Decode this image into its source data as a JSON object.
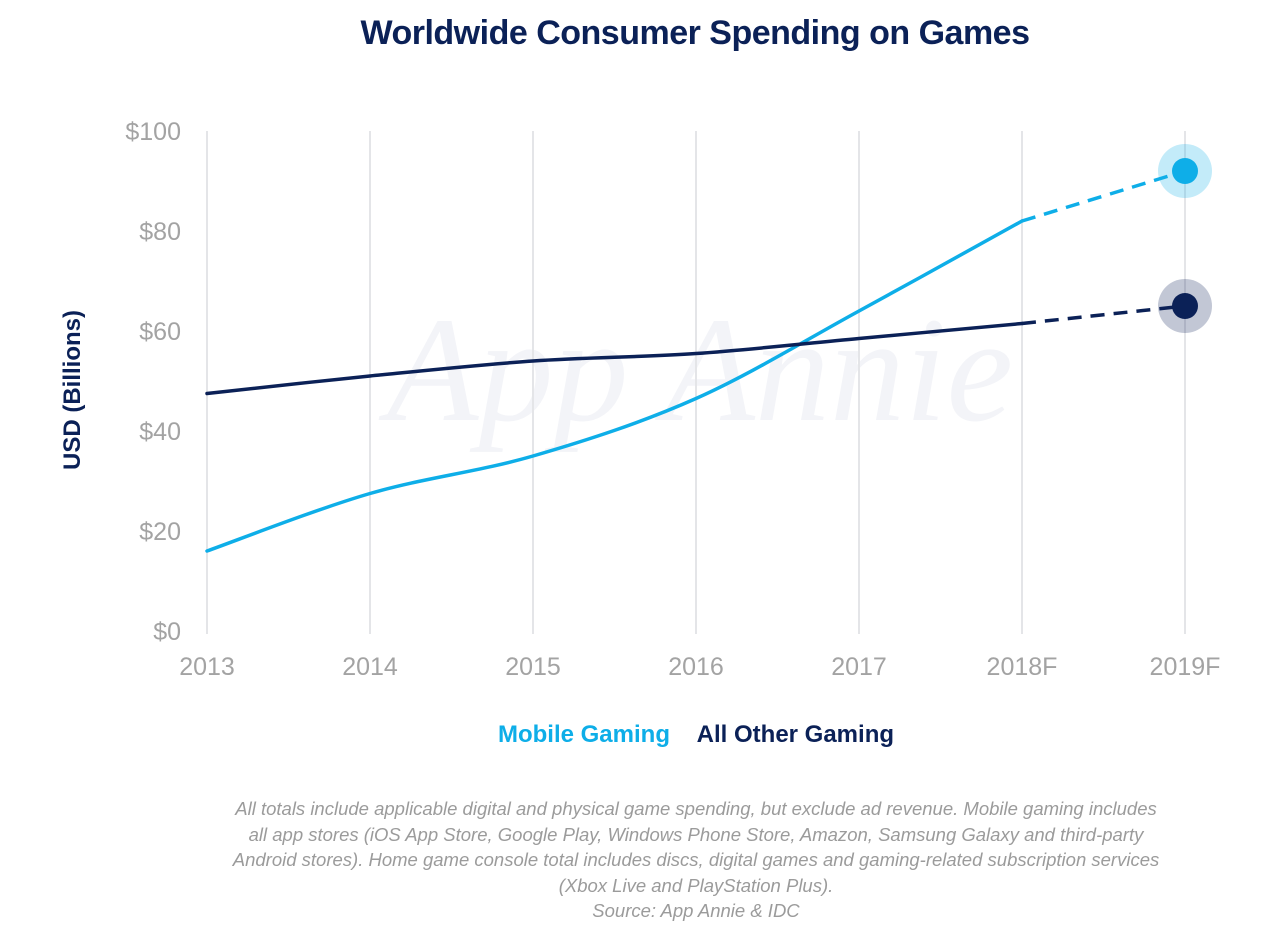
{
  "chart_data": {
    "type": "line",
    "title": "Worldwide Consumer Spending on Games",
    "ylabel": "USD (Billions)",
    "xlabel": "",
    "categories": [
      "2013",
      "2014",
      "2015",
      "2016",
      "2017",
      "2018F",
      "2019F"
    ],
    "yticks": [
      "$0",
      "$20",
      "$40",
      "$60",
      "$80",
      "$100"
    ],
    "ylim": [
      0,
      100
    ],
    "grid": "vertical",
    "watermark": "App Annie",
    "forecast_from": "2018F",
    "series": [
      {
        "name": "Mobile Gaming",
        "color": "#0eaee8",
        "values": [
          16,
          27.5,
          35,
          46.5,
          64,
          82,
          92
        ]
      },
      {
        "name": "All Other Gaming",
        "color": "#0b2157",
        "values": [
          47.5,
          51,
          54,
          55.5,
          58.5,
          61.5,
          65
        ]
      }
    ],
    "footnote": [
      "All totals include applicable digital and physical game spending, but exclude ad revenue. Mobile gaming includes",
      "all app stores (iOS App Store, Google Play, Windows Phone Store, Amazon, Samsung Galaxy and third-party",
      "Android stores). Home game console total includes discs, digital games and gaming-related subscription services",
      "(Xbox Live and PlayStation Plus).",
      "Source: App Annie & IDC"
    ]
  }
}
